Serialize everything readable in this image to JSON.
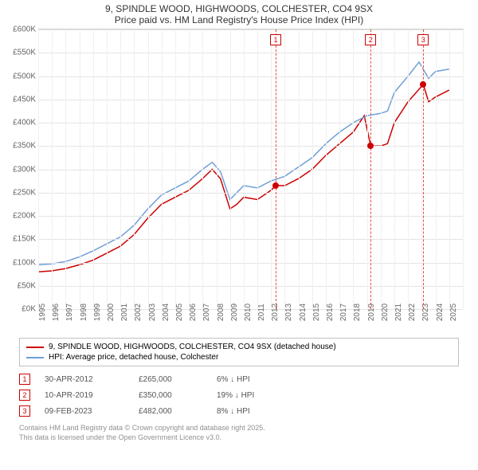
{
  "title": {
    "line1": "9, SPINDLE WOOD, HIGHWOODS, COLCHESTER, CO4 9SX",
    "line2": "Price paid vs. HM Land Registry's House Price Index (HPI)"
  },
  "chart": {
    "type": "line",
    "background_color": "#ffffff",
    "grid_color": "#e4e4e4",
    "axis_text_color": "#666666",
    "x": {
      "min": 1995,
      "max": 2026,
      "tick_step": 1
    },
    "y": {
      "min": 0,
      "max": 600000,
      "tick_step": 50000,
      "prefix": "£",
      "suffix": "K",
      "divisor": 1000
    },
    "series": [
      {
        "name": "property",
        "label": "9, SPINDLE WOOD, HIGHWOODS, COLCHESTER, CO4 9SX (detached house)",
        "color": "#cc0000",
        "line_width": 1.5,
        "points": [
          [
            1995,
            80000
          ],
          [
            1996,
            82000
          ],
          [
            1997,
            87000
          ],
          [
            1998,
            95000
          ],
          [
            1999,
            105000
          ],
          [
            2000,
            120000
          ],
          [
            2001,
            135000
          ],
          [
            2002,
            160000
          ],
          [
            2003,
            195000
          ],
          [
            2004,
            225000
          ],
          [
            2005,
            240000
          ],
          [
            2006,
            255000
          ],
          [
            2007,
            280000
          ],
          [
            2007.7,
            300000
          ],
          [
            2008.3,
            280000
          ],
          [
            2009,
            215000
          ],
          [
            2009.5,
            225000
          ],
          [
            2010,
            240000
          ],
          [
            2011,
            235000
          ],
          [
            2012,
            255000
          ],
          [
            2012.33,
            265000
          ],
          [
            2013,
            265000
          ],
          [
            2014,
            280000
          ],
          [
            2015,
            300000
          ],
          [
            2016,
            330000
          ],
          [
            2017,
            355000
          ],
          [
            2018,
            380000
          ],
          [
            2018.8,
            415000
          ],
          [
            2019.27,
            350000
          ],
          [
            2020,
            350000
          ],
          [
            2020.5,
            355000
          ],
          [
            2021,
            400000
          ],
          [
            2022,
            445000
          ],
          [
            2023.11,
            482000
          ],
          [
            2023.5,
            445000
          ],
          [
            2024,
            455000
          ],
          [
            2025,
            470000
          ]
        ]
      },
      {
        "name": "hpi",
        "label": "HPI: Average price, detached house, Colchester",
        "color": "#6f9fd8",
        "line_width": 1.5,
        "points": [
          [
            1995,
            95000
          ],
          [
            1996,
            97000
          ],
          [
            1997,
            102000
          ],
          [
            1998,
            112000
          ],
          [
            1999,
            125000
          ],
          [
            2000,
            140000
          ],
          [
            2001,
            155000
          ],
          [
            2002,
            180000
          ],
          [
            2003,
            215000
          ],
          [
            2004,
            245000
          ],
          [
            2005,
            260000
          ],
          [
            2006,
            275000
          ],
          [
            2007,
            300000
          ],
          [
            2007.7,
            315000
          ],
          [
            2008.3,
            295000
          ],
          [
            2009,
            235000
          ],
          [
            2009.5,
            250000
          ],
          [
            2010,
            265000
          ],
          [
            2011,
            260000
          ],
          [
            2012,
            275000
          ],
          [
            2013,
            285000
          ],
          [
            2014,
            305000
          ],
          [
            2015,
            325000
          ],
          [
            2016,
            355000
          ],
          [
            2017,
            380000
          ],
          [
            2018,
            400000
          ],
          [
            2019,
            415000
          ],
          [
            2020,
            420000
          ],
          [
            2020.5,
            425000
          ],
          [
            2021,
            465000
          ],
          [
            2022,
            500000
          ],
          [
            2022.8,
            530000
          ],
          [
            2023.5,
            495000
          ],
          [
            2024,
            510000
          ],
          [
            2025,
            515000
          ]
        ]
      }
    ],
    "markers": [
      {
        "id": "1",
        "x": 2012.33,
        "y": 265000
      },
      {
        "id": "2",
        "x": 2019.27,
        "y": 350000
      },
      {
        "id": "3",
        "x": 2023.11,
        "y": 482000
      }
    ],
    "marker_line_color": "#e74c3c",
    "marker_box_border": "#cc0000",
    "marker_box_text": "#cc0000",
    "sale_dot_color": "#cc0000"
  },
  "legend": {
    "items": [
      {
        "color": "#cc0000",
        "label": "9, SPINDLE WOOD, HIGHWOODS, COLCHESTER, CO4 9SX (detached house)"
      },
      {
        "color": "#6f9fd8",
        "label": "HPI: Average price, detached house, Colchester"
      }
    ]
  },
  "sales": [
    {
      "id": "1",
      "date": "30-APR-2012",
      "price": "£265,000",
      "diff": "6% ↓ HPI"
    },
    {
      "id": "2",
      "date": "10-APR-2019",
      "price": "£350,000",
      "diff": "19% ↓ HPI"
    },
    {
      "id": "3",
      "date": "09-FEB-2023",
      "price": "£482,000",
      "diff": "8% ↓ HPI"
    }
  ],
  "footer": {
    "line1": "Contains HM Land Registry data © Crown copyright and database right 2025.",
    "line2": "This data is licensed under the Open Government Licence v3.0."
  }
}
